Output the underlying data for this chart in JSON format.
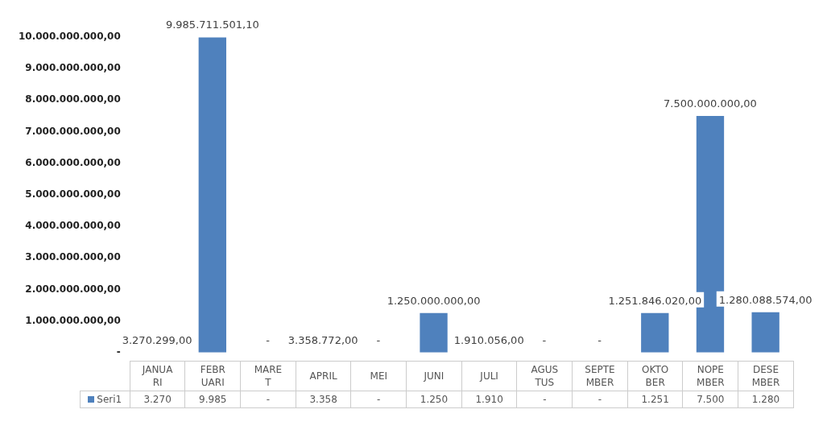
{
  "chart_data": {
    "type": "bar",
    "categories": [
      "JANUARI",
      "FEBRUARI",
      "MARET",
      "APRIL",
      "MEI",
      "JUNI",
      "JULI",
      "AGUSTUS",
      "SEPTEMBER",
      "OKTOBER",
      "NOPEMBER",
      "DESEMBER"
    ],
    "series": [
      {
        "name": "Seri1",
        "color": "#4f81bd",
        "values": [
          3270299,
          9985711501.1,
          0,
          3358772,
          0,
          1250000000,
          1910056,
          0,
          0,
          1251846020,
          7500000000,
          1280088574
        ],
        "value_labels": [
          "3.270.299,00",
          "9.985.711.501,10",
          "-",
          "3.358.772,00",
          "-",
          "1.250.000.000,00",
          "1.910.056,00",
          "-",
          "-",
          "1.251.846.020,00",
          "7.500.000.000,00",
          "1.280.088.574,00"
        ]
      }
    ],
    "ylim": [
      0,
      10000000000
    ],
    "yticks": [
      {
        "value": 0,
        "label": "-"
      },
      {
        "value": 1000000000,
        "label": "1.000.000.000,00"
      },
      {
        "value": 2000000000,
        "label": "2.000.000.000,00"
      },
      {
        "value": 3000000000,
        "label": "3.000.000.000,00"
      },
      {
        "value": 4000000000,
        "label": "4.000.000.000,00"
      },
      {
        "value": 5000000000,
        "label": "5.000.000.000,00"
      },
      {
        "value": 6000000000,
        "label": "6.000.000.000,00"
      },
      {
        "value": 7000000000,
        "label": "7.000.000.000,00"
      },
      {
        "value": 8000000000,
        "label": "8.000.000.000,00"
      },
      {
        "value": 9000000000,
        "label": "9.000.000.000,00"
      },
      {
        "value": 10000000000,
        "label": "10.000.000.000,00"
      }
    ],
    "annotations": [
      "3.270",
      "9.985",
      "-",
      "3.358",
      "-",
      "1.250",
      "1.910",
      "-",
      "-",
      "1.251",
      "7.500",
      "1.280"
    ],
    "legend": "bottom",
    "grid": false
  }
}
